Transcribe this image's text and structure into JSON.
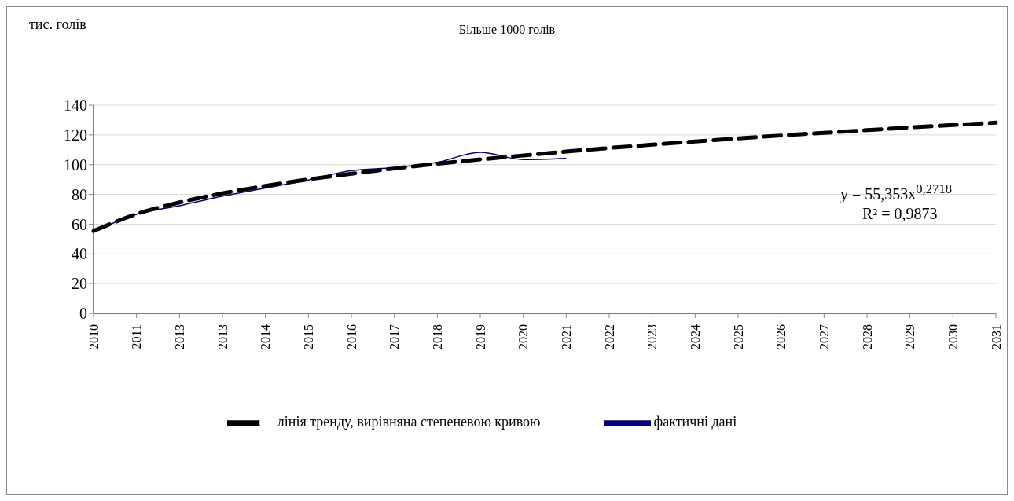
{
  "chart_data": {
    "type": "line",
    "title": "Більше 1000 голів",
    "ylabel": "тис. голів",
    "categories": [
      "2010",
      "2011",
      "2013",
      "2013",
      "2014",
      "2015",
      "2016",
      "2017",
      "2018",
      "2019",
      "2020",
      "2021",
      "2022",
      "2023",
      "2024",
      "2025",
      "2026",
      "2027",
      "2028",
      "2029",
      "2030",
      "2031"
    ],
    "series": [
      {
        "name": "фактичні дані",
        "color": "#000080",
        "line_style": "solid",
        "values": [
          55,
          66.6,
          72.4,
          78.8,
          84.3,
          89.7,
          96,
          98,
          101.6,
          108.3,
          103.4,
          104.2,
          null,
          null,
          null,
          null,
          null,
          null,
          null,
          null,
          null,
          null
        ]
      },
      {
        "name": "лінія тренду, вирівняна степеневою кривою",
        "color": "#000000",
        "line_style": "dashed",
        "values": [
          55.4,
          66.8,
          74.6,
          80.7,
          85.7,
          90.1,
          93.9,
          97.4,
          100.6,
          103.5,
          106.2,
          108.8,
          111.2,
          113.4,
          115.6,
          117.6,
          119.6,
          121.4,
          123.2,
          125,
          126.6,
          128.2
        ]
      }
    ],
    "ylim": [
      0,
      140
    ],
    "yticks": [
      0,
      20,
      40,
      60,
      80,
      100,
      120,
      140
    ],
    "grid": "y",
    "legend": "bottom",
    "marker": "none",
    "annotations": [
      "y = 55,353x$^{0,2718}$",
      "R² = 0,9873"
    ]
  }
}
